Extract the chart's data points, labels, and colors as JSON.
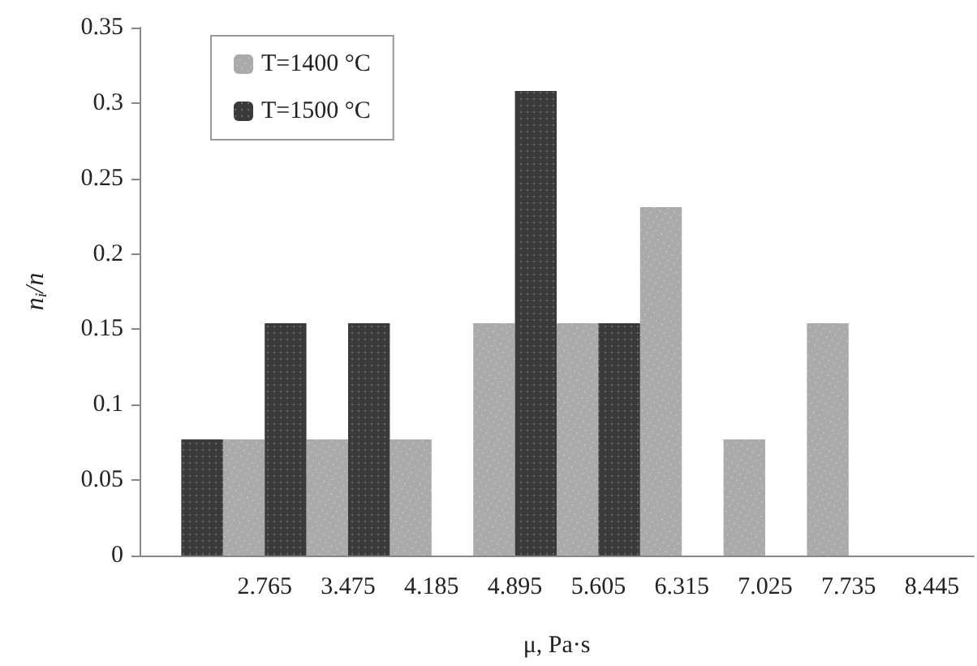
{
  "chart_data": {
    "type": "bar",
    "xlabel": "μ, Pa·s",
    "ylabel": "n$_{i}$/n",
    "categories": [
      null,
      "2.765",
      "3.475",
      "4.185",
      "4.895",
      "5.605",
      "6.315",
      "7.025",
      "7.735",
      "8.445"
    ],
    "series": [
      {
        "name": "T=1400 °C",
        "color": "#aaaaaa",
        "values": [
          0,
          0.077,
          0.077,
          0.077,
          0.154,
          0.154,
          0.231,
          0.077,
          0.154,
          0
        ]
      },
      {
        "name": "T=1500 °C",
        "color": "#3a3a3a",
        "values": [
          0.077,
          0.154,
          0.154,
          0,
          0.308,
          0.154,
          0,
          0,
          0,
          0
        ]
      }
    ],
    "ylim": [
      0,
      0.35
    ],
    "yticks": [
      0,
      0.05,
      0.1,
      0.15,
      0.2,
      0.25,
      0.3,
      0.35
    ],
    "grid": false,
    "legend": "top left"
  }
}
